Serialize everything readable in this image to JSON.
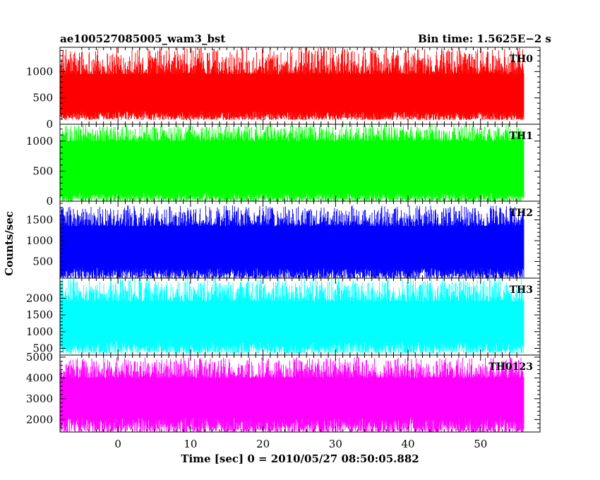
{
  "header": {
    "left_title": "ae100527085005_wam3_bst",
    "right_title": "Bin time: 1.5625E−2 s"
  },
  "axes": {
    "xlabel": "Time [sec] 0 = 2010/05/27 08:50:05.882",
    "ylabel": "Counts/sec"
  },
  "chart_data": {
    "type": "line",
    "title": "ae100527085005_wam3_bst",
    "subtitle": "Bin time: 1.5625E−2 s",
    "xlabel": "Time [sec] 0 = 2010/05/27 08:50:05.882",
    "ylabel": "Counts/sec",
    "xlim": [
      -8.0,
      58.2
    ],
    "xticks": [
      0,
      10,
      20,
      30,
      40,
      50
    ],
    "x_start": -8.0,
    "x_end": 56.0,
    "bin_time": 0.015625,
    "grid": false,
    "panels": [
      {
        "name": "TH0",
        "color": "#ff0000",
        "ylim": [
          0,
          1460
        ],
        "yticks": [
          0,
          500,
          1000
        ],
        "mean": 560,
        "low": [
          80,
          250
        ],
        "high": [
          950,
          1460
        ]
      },
      {
        "name": "TH1",
        "color": "#00ff00",
        "ylim": [
          0,
          1280
        ],
        "yticks": [
          0,
          500,
          1000
        ],
        "mean": 580,
        "low": [
          0,
          150
        ],
        "high": [
          1000,
          1280
        ]
      },
      {
        "name": "TH2",
        "color": "#0000ff",
        "ylim": [
          100,
          1950
        ],
        "yticks": [
          500,
          1000,
          1500
        ],
        "mean": 820,
        "low": [
          100,
          350
        ],
        "high": [
          1350,
          1850
        ]
      },
      {
        "name": "TH3",
        "color": "#00ffff",
        "ylim": [
          300,
          2600
        ],
        "yticks": [
          500,
          1000,
          1500,
          2000
        ],
        "mean": 1250,
        "low": [
          350,
          700
        ],
        "high": [
          1900,
          2600
        ]
      },
      {
        "name": "TH0123",
        "color": "#ff00ff",
        "ylim": [
          1400,
          5100
        ],
        "yticks": [
          2000,
          3000,
          4000,
          5000
        ],
        "mean": 3050,
        "low": [
          1400,
          2100
        ],
        "high": [
          4000,
          5000
        ]
      }
    ]
  }
}
